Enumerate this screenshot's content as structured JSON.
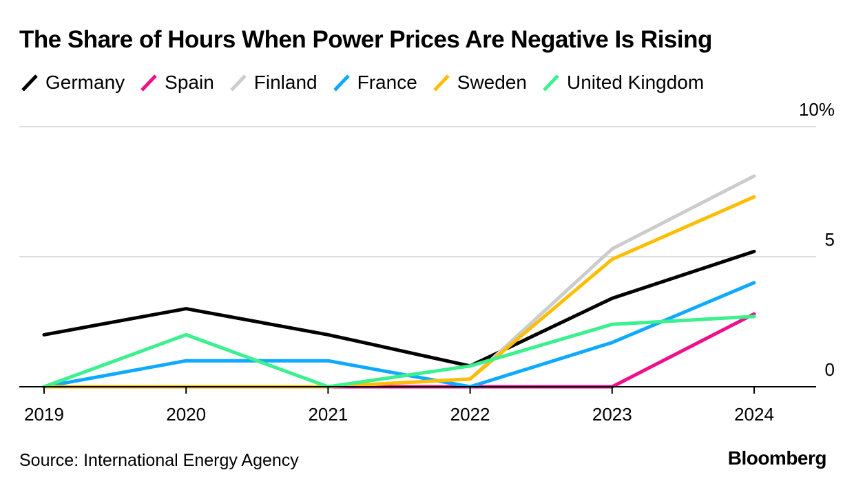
{
  "chart_data": {
    "type": "line",
    "title": "The Share of Hours When Power Prices Are Negative Is Rising",
    "x": [
      "2019",
      "2020",
      "2021",
      "2022",
      "2023",
      "2024"
    ],
    "ylim": [
      0,
      10
    ],
    "y_ticks": [
      {
        "value": 0,
        "label": "0"
      },
      {
        "value": 5,
        "label": "5"
      },
      {
        "value": 10,
        "label": "10%"
      }
    ],
    "grid": true,
    "legend_position": "top-left",
    "series": [
      {
        "name": "Germany",
        "color": "#000000",
        "values": [
          2.0,
          3.0,
          2.0,
          0.8,
          3.4,
          5.2
        ]
      },
      {
        "name": "Spain",
        "color": "#ee0f8c",
        "values": [
          0.0,
          0.0,
          0.0,
          0.0,
          0.0,
          2.8
        ]
      },
      {
        "name": "Finland",
        "color": "#cccccc",
        "values": [
          0.0,
          0.0,
          0.0,
          0.3,
          5.3,
          8.1
        ]
      },
      {
        "name": "France",
        "color": "#0faaff",
        "values": [
          0.0,
          1.0,
          1.0,
          0.0,
          1.7,
          4.0
        ]
      },
      {
        "name": "Sweden",
        "color": "#fcbe04",
        "values": [
          0.0,
          0.0,
          0.0,
          0.3,
          4.9,
          7.3
        ]
      },
      {
        "name": "United Kingdom",
        "color": "#3bf08f",
        "values": [
          0.0,
          2.0,
          0.0,
          0.8,
          2.4,
          2.7
        ]
      }
    ]
  },
  "footer": {
    "source": "Source: International Energy Agency",
    "brand": "Bloomberg"
  }
}
